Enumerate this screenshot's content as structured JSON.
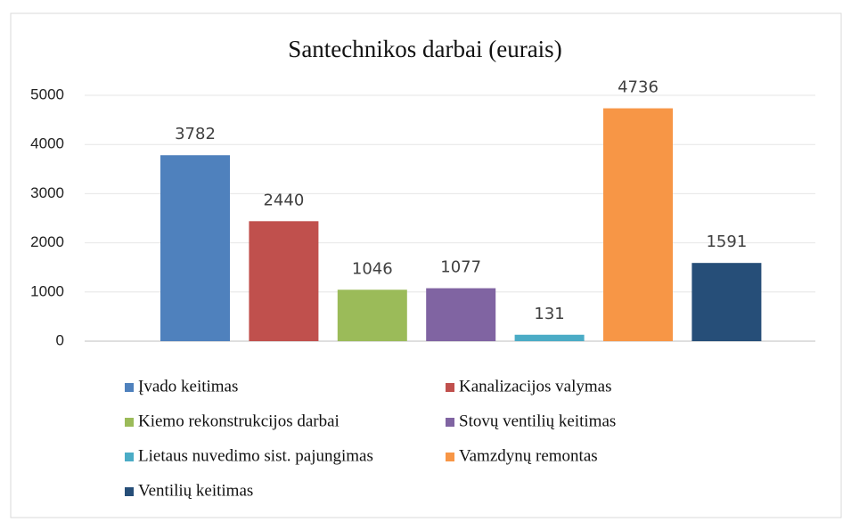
{
  "chart_data": {
    "type": "bar",
    "title": "Santechnikos darbai (eurais)",
    "series": [
      {
        "name": "Įvado keitimas",
        "color": "#4f81bd",
        "values": [
          3782
        ]
      },
      {
        "name": "Kanalizacijos valymas",
        "color": "#c0504d",
        "values": [
          2440
        ]
      },
      {
        "name": "Kiemo rekonstrukcijos darbai",
        "color": "#9bbb59",
        "values": [
          1046
        ]
      },
      {
        "name": "Stovų ventilių keitimas",
        "color": "#8064a2",
        "values": [
          1077
        ]
      },
      {
        "name": "Lietaus nuvedimo sist. pajungimas",
        "color": "#4bacc6",
        "values": [
          131
        ]
      },
      {
        "name": "Vamzdynų remontas",
        "color": "#f79646",
        "values": [
          4736
        ]
      },
      {
        "name": "Ventilių keitimas",
        "color": "#264e78",
        "values": [
          1591
        ]
      }
    ],
    "ylim": [
      0,
      5000
    ],
    "yticks": [
      0,
      1000,
      2000,
      3000,
      4000,
      5000
    ],
    "grid": true,
    "legend": "bottom"
  }
}
